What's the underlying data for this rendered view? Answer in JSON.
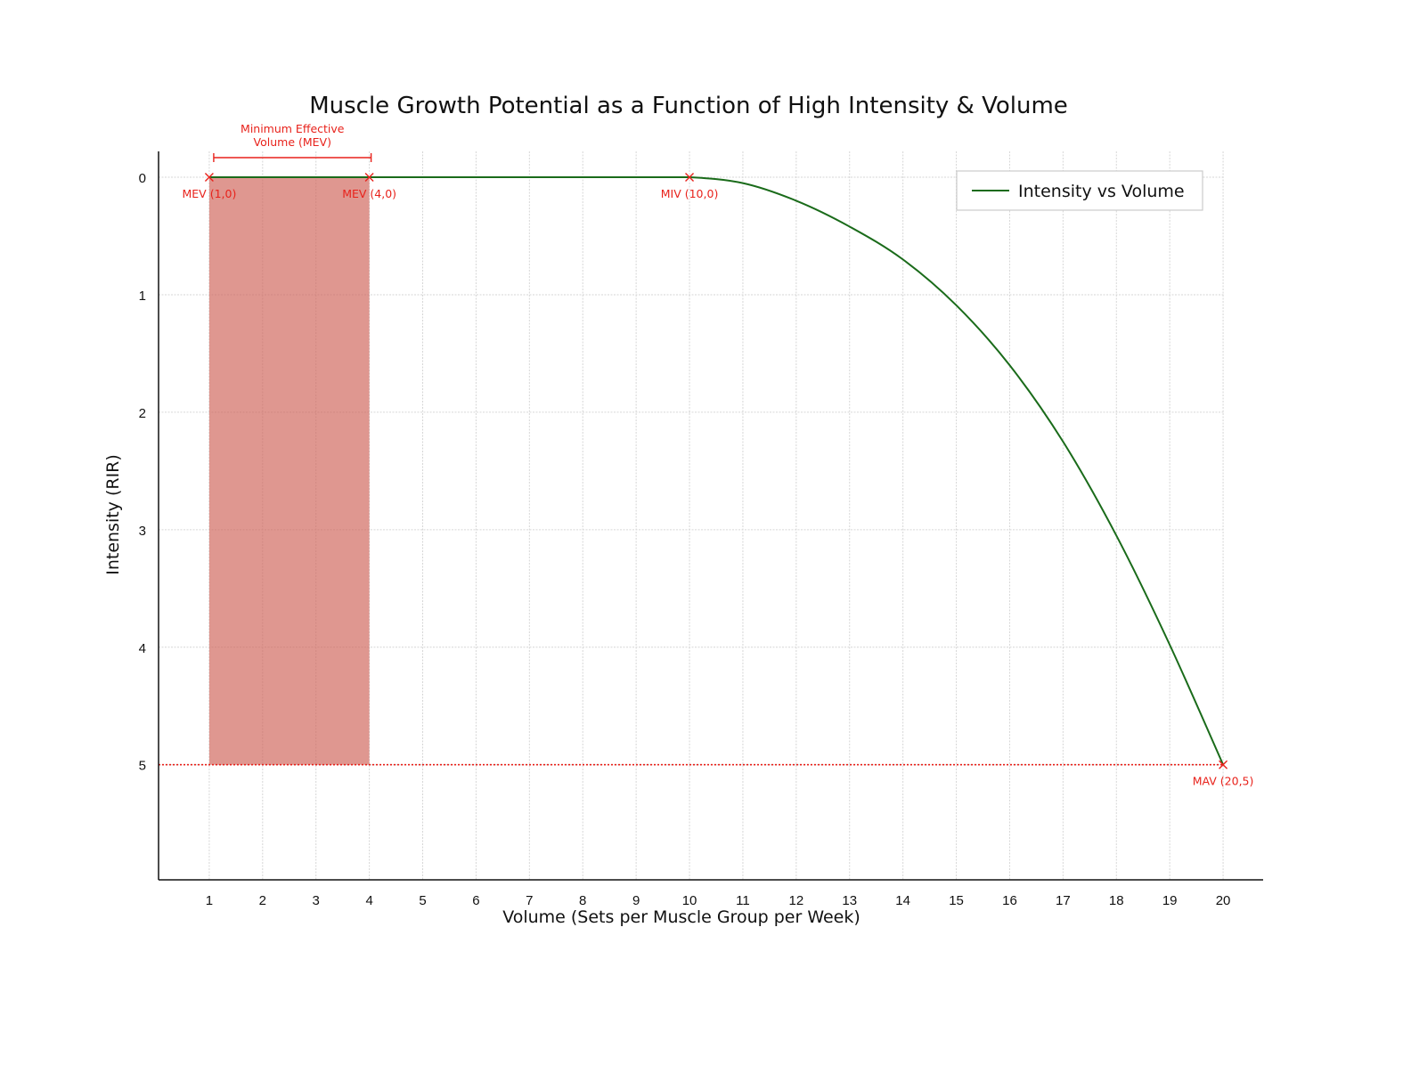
{
  "chart_data": {
    "type": "line",
    "title": "Muscle Growth Potential as a Function of High Intensity & Volume",
    "xlabel": "Volume (Sets per Muscle Group per Week)",
    "ylabel": "Intensity (RIR)",
    "xlim": [
      0.05,
      20.75
    ],
    "ylim": [
      -0.22,
      5.98
    ],
    "y_inverted": true,
    "x_ticks": [
      1,
      2,
      3,
      4,
      5,
      6,
      7,
      8,
      9,
      10,
      11,
      12,
      13,
      14,
      15,
      16,
      17,
      18,
      19,
      20
    ],
    "y_ticks": [
      0,
      1,
      2,
      3,
      4,
      5
    ],
    "grid": true,
    "legend_position": "top-right",
    "series": [
      {
        "name": "Intensity vs Volume",
        "color": "#1a6b1a",
        "x": [
          1,
          2,
          3,
          4,
          5,
          6,
          7,
          8,
          9,
          10,
          11,
          12,
          13,
          14,
          15,
          16,
          17,
          18,
          19,
          20
        ],
        "y": [
          0,
          0,
          0,
          0,
          0,
          0,
          0,
          0,
          0,
          0,
          0.05,
          0.2,
          0.42,
          0.7,
          1.09,
          1.6,
          2.25,
          3.05,
          3.98,
          5.0
        ]
      }
    ],
    "shaded_region": {
      "x": [
        1,
        4
      ],
      "y": [
        0,
        5
      ],
      "color": "#d0665c"
    },
    "reference_line": {
      "y": 5,
      "color": "#e8221b",
      "style": "dotted"
    },
    "bracket": {
      "x": [
        1,
        4
      ],
      "label_line1": "Minimum Effective",
      "label_line2": "Volume (MEV)"
    },
    "markers": [
      {
        "x": 1,
        "y": 0,
        "label": "MEV (1,0)"
      },
      {
        "x": 4,
        "y": 0,
        "label": "MEV (4,0)"
      },
      {
        "x": 10,
        "y": 0,
        "label": "MIV (10,0)"
      },
      {
        "x": 20,
        "y": 5,
        "label": "MAV (20,5)"
      }
    ],
    "annotation_color": "#e8221b"
  }
}
